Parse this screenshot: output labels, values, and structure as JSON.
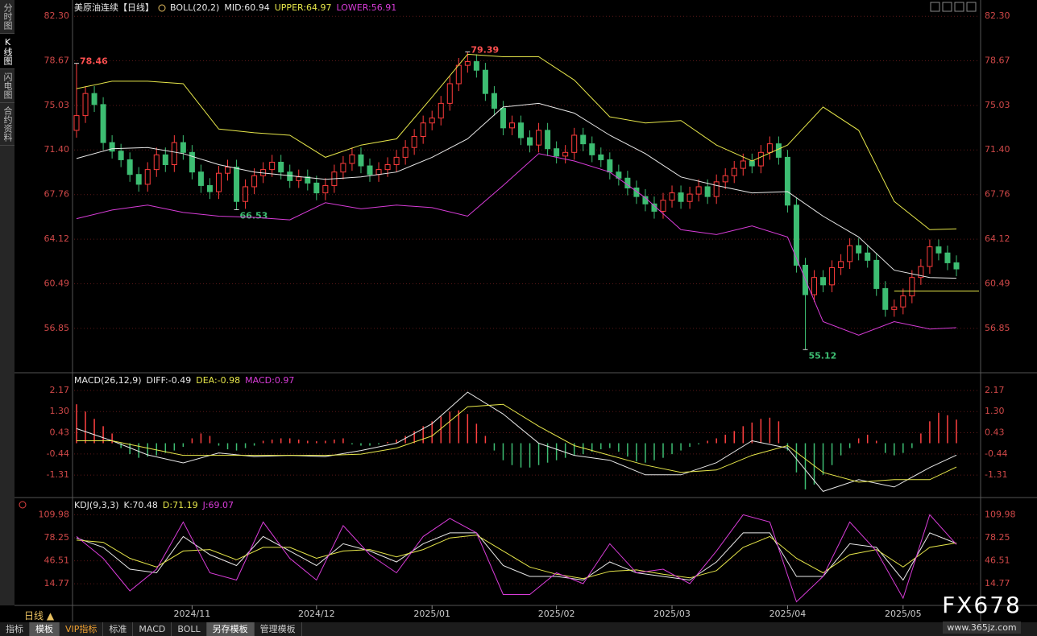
{
  "ui": {
    "sidebar": [
      "分时图",
      "K线图",
      "闪电图",
      "合约资料"
    ],
    "period": "日线 ▲",
    "tabs": [
      "指标",
      "模板",
      "VIP指标",
      "标准",
      "MACD",
      "BOLL",
      "另存模板",
      "管理模板"
    ],
    "watermark": "FX678",
    "watermark_url": "www.365jz.com"
  },
  "chart_data": [
    {
      "type": "candlestick",
      "title": "美原油连续【日线】",
      "indicator": "BOLL(20,2)",
      "up_color": "#ff3c3c",
      "down_color": "#3dbd72",
      "grid": true,
      "ylim": [
        53.3,
        83.1
      ],
      "yticks": [
        {
          "value": 82.3,
          "label": "82.30"
        },
        78.67,
        75.03,
        {
          "value": 71.4,
          "label": "71.40"
        },
        67.76,
        64.12,
        60.49,
        56.85
      ],
      "xticks": [
        {
          "value": 13,
          "label": "2024/11"
        },
        {
          "value": 27,
          "label": "2024/12"
        },
        {
          "value": 40,
          "label": "2025/01"
        },
        {
          "value": 54,
          "label": "2025/02"
        },
        {
          "value": 67,
          "label": "2025/03"
        },
        {
          "value": 80,
          "label": "2025/04"
        },
        {
          "value": 93,
          "label": "2025/05"
        }
      ],
      "open": [
        73.0,
        74.2,
        76.0,
        75.1,
        72.0,
        71.3,
        70.6,
        69.4,
        68.6,
        69.8,
        71.0,
        70.2,
        72.0,
        71.2,
        69.6,
        68.5,
        68.0,
        69.5,
        70.0,
        67.2,
        68.4,
        69.3,
        69.8,
        70.4,
        69.6,
        68.9,
        69.2,
        68.7,
        67.9,
        68.5,
        69.6,
        70.3,
        71.0,
        70.1,
        69.4,
        69.8,
        70.2,
        70.8,
        71.6,
        72.5,
        73.6,
        74.0,
        75.2,
        76.8,
        78.3,
        78.6,
        77.9,
        76.0,
        74.8,
        73.2,
        73.6,
        72.4,
        71.8,
        73.0,
        71.5,
        70.9,
        71.2,
        72.6,
        71.9,
        71.0,
        70.6,
        69.6,
        69.1,
        68.3,
        67.6,
        67.0,
        66.4,
        67.3,
        67.9,
        67.2,
        67.8,
        68.4,
        67.6,
        68.8,
        69.3,
        69.9,
        70.5,
        70.1,
        71.2,
        71.9,
        70.8,
        66.9,
        62.0,
        59.6,
        61.0,
        60.4,
        61.8,
        62.3,
        63.6,
        63.0,
        62.4,
        60.1,
        58.4,
        58.6,
        59.5,
        61.0,
        61.9,
        63.5,
        63.0,
        62.2
      ],
      "high": [
        78.46,
        76.6,
        76.6,
        75.7,
        72.6,
        71.9,
        71.2,
        70.0,
        70.4,
        71.6,
        71.6,
        72.6,
        72.6,
        71.8,
        70.2,
        69.1,
        70.1,
        70.6,
        70.6,
        69.0,
        69.9,
        70.4,
        71.0,
        71.0,
        70.2,
        69.8,
        69.8,
        69.3,
        69.1,
        70.2,
        70.9,
        71.6,
        71.6,
        70.7,
        70.4,
        70.8,
        71.4,
        72.2,
        73.1,
        74.2,
        74.6,
        75.8,
        77.4,
        78.9,
        79.39,
        79.2,
        78.5,
        76.6,
        75.4,
        74.2,
        74.2,
        73.0,
        73.6,
        73.6,
        72.1,
        71.8,
        73.2,
        73.2,
        72.5,
        71.6,
        71.2,
        70.2,
        69.7,
        68.9,
        68.2,
        67.6,
        67.9,
        68.5,
        68.5,
        68.4,
        69.0,
        69.0,
        69.4,
        69.9,
        70.5,
        71.1,
        71.1,
        71.8,
        72.5,
        72.5,
        71.4,
        67.5,
        62.6,
        61.6,
        61.6,
        62.4,
        62.9,
        64.2,
        64.2,
        63.6,
        63.0,
        60.7,
        59.2,
        60.1,
        61.6,
        62.5,
        64.1,
        64.1,
        63.6,
        62.8
      ],
      "low": [
        72.4,
        73.6,
        74.5,
        71.4,
        70.7,
        70.0,
        68.8,
        68.0,
        68.0,
        69.2,
        69.6,
        69.6,
        70.6,
        69.0,
        67.9,
        67.4,
        67.4,
        68.9,
        66.53,
        66.6,
        67.8,
        68.7,
        69.2,
        69.0,
        68.3,
        68.3,
        68.1,
        67.3,
        67.3,
        67.9,
        69.0,
        69.7,
        69.5,
        68.8,
        68.8,
        69.2,
        69.6,
        70.2,
        71.0,
        71.9,
        73.0,
        73.4,
        74.6,
        76.2,
        77.7,
        77.3,
        75.4,
        74.2,
        72.6,
        72.6,
        71.8,
        71.2,
        71.2,
        70.9,
        70.3,
        70.3,
        70.6,
        71.3,
        70.4,
        70.0,
        69.0,
        68.5,
        67.7,
        67.0,
        66.4,
        65.8,
        65.8,
        66.7,
        66.6,
        66.6,
        67.2,
        67.0,
        67.0,
        68.2,
        68.7,
        69.3,
        69.5,
        69.5,
        70.6,
        70.2,
        66.3,
        61.4,
        55.12,
        59.0,
        59.8,
        59.8,
        61.2,
        61.7,
        62.4,
        61.8,
        59.5,
        57.8,
        57.8,
        58.0,
        58.9,
        60.4,
        61.3,
        62.4,
        61.6,
        61.1
      ],
      "close": [
        74.2,
        76.0,
        75.1,
        72.0,
        71.3,
        70.6,
        69.4,
        68.6,
        69.8,
        71.0,
        70.2,
        72.0,
        71.2,
        69.6,
        68.5,
        68.0,
        69.5,
        70.0,
        67.2,
        68.4,
        69.3,
        69.8,
        70.4,
        69.6,
        68.9,
        69.2,
        68.7,
        67.9,
        68.5,
        69.6,
        70.3,
        71.0,
        70.1,
        69.4,
        69.8,
        70.2,
        70.8,
        71.6,
        72.5,
        73.6,
        74.0,
        75.2,
        76.8,
        78.3,
        78.6,
        77.9,
        76.0,
        74.8,
        73.2,
        73.6,
        72.4,
        71.8,
        73.0,
        71.5,
        70.9,
        71.2,
        72.6,
        71.9,
        71.0,
        70.6,
        69.6,
        69.1,
        68.3,
        67.6,
        67.0,
        66.4,
        67.3,
        67.9,
        67.2,
        67.8,
        68.4,
        67.6,
        68.8,
        69.3,
        69.9,
        70.5,
        70.1,
        71.2,
        71.9,
        70.8,
        66.9,
        62.0,
        59.6,
        61.0,
        60.4,
        61.8,
        62.3,
        63.6,
        63.0,
        62.4,
        60.1,
        58.4,
        58.6,
        59.5,
        61.0,
        61.9,
        63.5,
        63.0,
        62.2,
        61.7
      ],
      "lines": {
        "x": [
          0,
          4,
          8,
          12,
          16,
          20,
          24,
          28,
          32,
          36,
          40,
          44,
          48,
          52,
          56,
          60,
          64,
          68,
          72,
          76,
          80,
          84,
          88,
          92,
          96,
          99
        ],
        "series": [
          {
            "name": "MID:60.94",
            "color": "#e8e8e8",
            "values": [
              70.7,
              71.5,
              71.6,
              71.1,
              70.2,
              69.6,
              69.3,
              69.0,
              69.2,
              69.6,
              70.8,
              72.3,
              74.9,
              75.2,
              74.4,
              72.6,
              71.1,
              69.2,
              68.5,
              67.9,
              68.0,
              66.0,
              64.3,
              61.6,
              61.0,
              60.94
            ]
          },
          {
            "name": "UPPER:64.97",
            "color": "#e6e64a",
            "values": [
              76.4,
              77.0,
              77.0,
              76.8,
              73.1,
              72.8,
              72.6,
              70.8,
              71.8,
              72.3,
              75.7,
              79.2,
              79.0,
              79.0,
              77.1,
              74.1,
              73.6,
              73.8,
              71.8,
              70.5,
              71.8,
              74.9,
              73.0,
              67.2,
              64.9,
              64.97
            ]
          },
          {
            "name": "LOWER:56.91",
            "color": "#d83cd8",
            "values": [
              65.8,
              66.5,
              66.9,
              66.3,
              66.0,
              65.9,
              65.7,
              67.1,
              66.6,
              66.9,
              66.7,
              66.0,
              68.5,
              71.1,
              70.5,
              69.6,
              67.5,
              64.9,
              64.5,
              65.2,
              64.3,
              57.4,
              56.3,
              57.4,
              56.8,
              56.91
            ]
          }
        ]
      },
      "reference_line": {
        "from": 92,
        "value": 59.9,
        "color": "#e6e64a"
      }
    },
    {
      "type": "macd",
      "title": "MACD(26,12,9)",
      "grid": true,
      "ylim": [
        -2.2,
        2.4
      ],
      "yticks": [
        2.17,
        {
          "value": 1.3,
          "label": "1.30"
        },
        0.43,
        -0.44,
        -1.31
      ],
      "histogram": {
        "name": "MACD:0.97",
        "color": "#d83cd8",
        "up_color": "#ff4040",
        "down_color": "#3dbd72",
        "values": [
          1.6,
          1.3,
          1.0,
          0.7,
          0.4,
          -0.2,
          -0.45,
          -0.6,
          -0.55,
          -0.5,
          -0.4,
          -0.3,
          -0.15,
          0.2,
          0.4,
          0.3,
          -0.1,
          -0.25,
          -0.3,
          -0.2,
          -0.1,
          0.1,
          0.15,
          0.2,
          0.2,
          0.15,
          0.1,
          0.08,
          0.1,
          0.15,
          0.2,
          -0.05,
          -0.1,
          -0.1,
          -0.05,
          0.05,
          0.15,
          0.3,
          0.5,
          0.7,
          0.9,
          1.1,
          1.3,
          1.35,
          1.2,
          0.8,
          0.3,
          -0.3,
          -0.7,
          -0.9,
          -1.0,
          -1.0,
          -0.9,
          -0.8,
          -0.7,
          -0.6,
          -0.5,
          -0.45,
          -0.35,
          -0.25,
          -0.2,
          -0.35,
          -0.55,
          -0.75,
          -0.8,
          -0.7,
          -0.6,
          -0.45,
          -0.3,
          -0.15,
          -0.05,
          0.1,
          0.2,
          0.35,
          0.5,
          0.7,
          0.85,
          1.0,
          1.05,
          0.9,
          -0.3,
          -1.2,
          -1.9,
          -1.7,
          -1.3,
          -0.9,
          -0.5,
          -0.2,
          0.2,
          0.35,
          0.1,
          -0.4,
          -0.5,
          -0.4,
          -0.2,
          0.4,
          0.9,
          1.25,
          1.15,
          0.97
        ]
      },
      "lines": {
        "x": [
          0,
          4,
          8,
          12,
          16,
          20,
          24,
          28,
          32,
          36,
          40,
          44,
          48,
          52,
          56,
          60,
          64,
          68,
          72,
          76,
          80,
          84,
          88,
          92,
          96,
          99
        ],
        "series": [
          {
            "name": "DIFF:-0.49",
            "color": "#e8e8e8",
            "values": [
              0.6,
              0.1,
              -0.48,
              -0.81,
              -0.4,
              -0.55,
              -0.5,
              -0.55,
              -0.3,
              0.0,
              0.8,
              2.1,
              1.2,
              0.0,
              -0.5,
              -0.7,
              -1.3,
              -1.3,
              -0.8,
              0.1,
              -0.2,
              -1.98,
              -1.5,
              -1.8,
              -1.0,
              -0.49
            ]
          },
          {
            "name": "DEA:-0.98",
            "color": "#e6e64a",
            "values": [
              0.1,
              0.1,
              -0.2,
              -0.5,
              -0.5,
              -0.5,
              -0.5,
              -0.5,
              -0.45,
              -0.2,
              0.3,
              1.5,
              1.6,
              0.7,
              -0.1,
              -0.5,
              -0.9,
              -1.2,
              -1.1,
              -0.5,
              -0.1,
              -1.2,
              -1.6,
              -1.5,
              -1.5,
              -0.98
            ]
          }
        ]
      }
    },
    {
      "type": "kdj",
      "title": "KDJ(9,3,3)",
      "grid": true,
      "ylim": [
        -15,
        126
      ],
      "yticks": [
        109.98,
        78.25,
        46.51,
        14.77
      ],
      "lines": {
        "x": [
          0,
          3,
          6,
          9,
          12,
          15,
          18,
          21,
          24,
          27,
          30,
          33,
          36,
          39,
          42,
          45,
          48,
          51,
          54,
          57,
          60,
          63,
          66,
          69,
          72,
          75,
          78,
          81,
          84,
          87,
          90,
          93,
          96,
          99
        ],
        "series": [
          {
            "name": "K:70.48",
            "color": "#e8e8e8",
            "values": [
              78,
              65,
              35,
              30,
              80,
              55,
              40,
              80,
              60,
              40,
              70,
              60,
              45,
              70,
              85,
              85,
              40,
              25,
              25,
              20,
              45,
              30,
              25,
              20,
              45,
              85,
              85,
              25,
              25,
              70,
              65,
              20,
              85,
              70.48
            ]
          },
          {
            "name": "D:71.19",
            "color": "#e6e64a",
            "values": [
              75,
              72,
              50,
              38,
              60,
              62,
              48,
              65,
              65,
              50,
              60,
              62,
              52,
              62,
              78,
              82,
              60,
              38,
              28,
              22,
              32,
              34,
              28,
              23,
              33,
              65,
              80,
              50,
              30,
              55,
              62,
              38,
              65,
              71.19
            ]
          },
          {
            "name": "J:69.07",
            "color": "#d83cd8",
            "values": [
              80,
              50,
              5,
              35,
              100,
              30,
              20,
              100,
              50,
              20,
              95,
              55,
              30,
              80,
              105,
              85,
              0,
              0,
              30,
              15,
              70,
              30,
              35,
              15,
              60,
              110,
              100,
              -10,
              25,
              100,
              60,
              -5,
              110,
              69.07
            ]
          }
        ]
      }
    }
  ]
}
